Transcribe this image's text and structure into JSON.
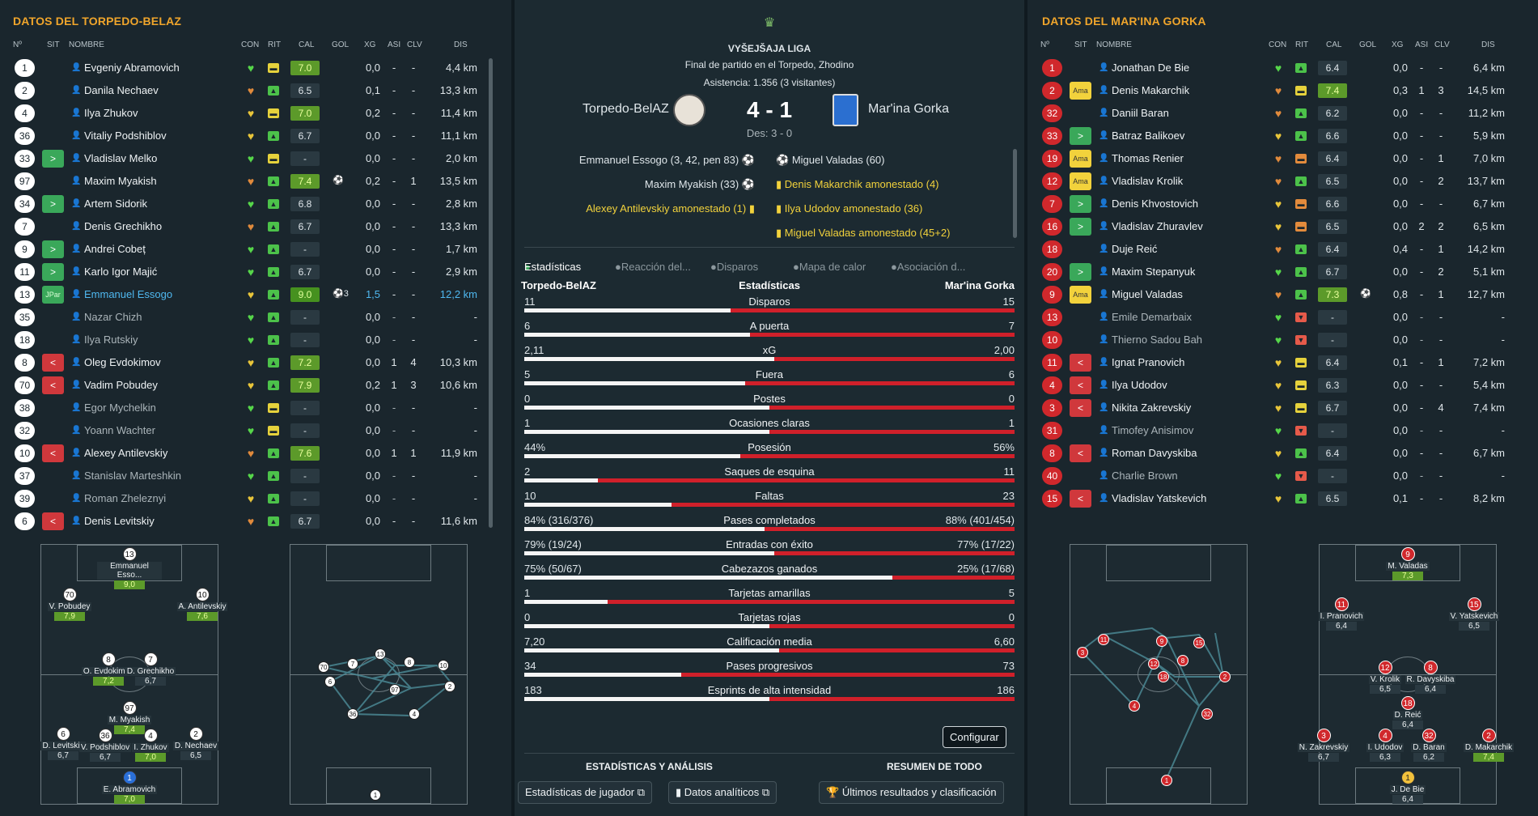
{
  "left": {
    "title": "DATOS DEL TORPEDO-BELAZ",
    "headers": {
      "no": "Nº",
      "sit": "SIT",
      "nombre": "NOMBRE",
      "con": "CON",
      "rit": "RIT",
      "cal": "CAL",
      "gol": "GOL",
      "xg": "XG",
      "asi": "ASI",
      "clv": "CLV",
      "dis": "DIS"
    },
    "players": [
      {
        "no": "1",
        "sit": "",
        "name": "Evgeniy Abramovich",
        "con": "green",
        "rit": "flat",
        "cal": "7.0",
        "calc": "g1",
        "gol": "",
        "xg": "0,0",
        "asi": "-",
        "clv": "-",
        "dis": "4,4 km"
      },
      {
        "no": "2",
        "sit": "",
        "name": "Danila Nechaev",
        "con": "orange",
        "rit": "up",
        "cal": "6.5",
        "calc": "",
        "gol": "",
        "xg": "0,1",
        "asi": "-",
        "clv": "-",
        "dis": "13,3 km"
      },
      {
        "no": "4",
        "sit": "",
        "name": "Ilya Zhukov",
        "con": "yellow",
        "rit": "flat",
        "cal": "7.0",
        "calc": "g1",
        "gol": "",
        "xg": "0,2",
        "asi": "-",
        "clv": "-",
        "dis": "11,4 km"
      },
      {
        "no": "36",
        "sit": "",
        "name": "Vitaliy Podshiblov",
        "con": "yellow",
        "rit": "up",
        "cal": "6.7",
        "calc": "",
        "gol": "",
        "xg": "0,0",
        "asi": "-",
        "clv": "-",
        "dis": "11,1 km"
      },
      {
        "no": "33",
        "sit": ">",
        "sitc": "in",
        "name": "Vladislav Melko",
        "con": "green",
        "rit": "flat",
        "cal": "-",
        "calc": "",
        "gol": "",
        "xg": "0,0",
        "asi": "-",
        "clv": "-",
        "dis": "2,0 km"
      },
      {
        "no": "97",
        "sit": "",
        "name": "Maxim Myakish",
        "con": "orange",
        "rit": "up",
        "cal": "7.4",
        "calc": "g1",
        "gol": "⚽",
        "xg": "0,2",
        "asi": "-",
        "clv": "1",
        "dis": "13,5 km"
      },
      {
        "no": "34",
        "sit": ">",
        "sitc": "in",
        "name": "Artem Sidorik",
        "con": "green",
        "rit": "up",
        "cal": "6.8",
        "calc": "",
        "gol": "",
        "xg": "0,0",
        "asi": "-",
        "clv": "-",
        "dis": "2,8 km"
      },
      {
        "no": "7",
        "sit": "",
        "name": "Denis Grechikho",
        "con": "orange",
        "rit": "up",
        "cal": "6.7",
        "calc": "",
        "gol": "",
        "xg": "0,0",
        "asi": "-",
        "clv": "-",
        "dis": "13,3 km"
      },
      {
        "no": "9",
        "sit": ">",
        "sitc": "in",
        "name": "Andrei Cobeț",
        "con": "green",
        "rit": "up",
        "cal": "-",
        "calc": "",
        "gol": "",
        "xg": "0,0",
        "asi": "-",
        "clv": "-",
        "dis": "1,7 km"
      },
      {
        "no": "11",
        "sit": ">",
        "sitc": "in",
        "name": "Karlo Igor Majić",
        "con": "green",
        "rit": "up",
        "cal": "6.7",
        "calc": "",
        "gol": "",
        "xg": "0,0",
        "asi": "-",
        "clv": "-",
        "dis": "2,9 km"
      },
      {
        "no": "13",
        "sit": "JPar",
        "sitc": "jpar",
        "name": "Emmanuel Essogo",
        "hl": true,
        "con": "yellow",
        "rit": "up",
        "cal": "9.0",
        "calc": "g2",
        "gol": "⚽3",
        "xg": "1,5",
        "asi": "-",
        "clv": "-",
        "dis": "12,2 km"
      },
      {
        "no": "35",
        "sit": "",
        "name": "Nazar Chizh",
        "dim": true,
        "con": "green",
        "rit": "up",
        "cal": "-",
        "calc": "",
        "gol": "",
        "xg": "0,0",
        "asi": "-",
        "clv": "-",
        "dis": "-"
      },
      {
        "no": "18",
        "sit": "",
        "name": "Ilya Rutskiy",
        "dim": true,
        "con": "green",
        "rit": "up",
        "cal": "-",
        "calc": "",
        "gol": "",
        "xg": "0,0",
        "asi": "-",
        "clv": "-",
        "dis": "-"
      },
      {
        "no": "8",
        "sit": "<",
        "sitc": "out",
        "name": "Oleg Evdokimov",
        "con": "yellow",
        "rit": "up",
        "cal": "7.2",
        "calc": "g1",
        "gol": "",
        "xg": "0,0",
        "asi": "1",
        "clv": "4",
        "dis": "10,3 km"
      },
      {
        "no": "70",
        "sit": "<",
        "sitc": "out",
        "name": "Vadim Pobudey",
        "con": "yellow",
        "rit": "up",
        "cal": "7.9",
        "calc": "g1",
        "gol": "",
        "xg": "0,2",
        "asi": "1",
        "clv": "3",
        "dis": "10,6 km"
      },
      {
        "no": "38",
        "sit": "",
        "name": "Egor Mychelkin",
        "dim": true,
        "con": "green",
        "rit": "flat",
        "cal": "-",
        "calc": "",
        "gol": "",
        "xg": "0,0",
        "asi": "-",
        "clv": "-",
        "dis": "-"
      },
      {
        "no": "32",
        "sit": "",
        "name": "Yoann Wachter",
        "dim": true,
        "con": "green",
        "rit": "flat",
        "cal": "-",
        "calc": "",
        "gol": "",
        "xg": "0,0",
        "asi": "-",
        "clv": "-",
        "dis": "-"
      },
      {
        "no": "10",
        "sit": "<",
        "sitc": "out",
        "name": "Alexey Antilevskiy",
        "con": "orange",
        "rit": "up",
        "cal": "7.6",
        "calc": "g1",
        "gol": "",
        "xg": "0,0",
        "asi": "1",
        "clv": "1",
        "dis": "11,9 km"
      },
      {
        "no": "37",
        "sit": "",
        "name": "Stanislav Marteshkin",
        "dim": true,
        "con": "green",
        "rit": "up",
        "cal": "-",
        "calc": "",
        "gol": "",
        "xg": "0,0",
        "asi": "-",
        "clv": "-",
        "dis": "-"
      },
      {
        "no": "39",
        "sit": "",
        "name": "Roman Zheleznyi",
        "dim": true,
        "con": "yellow",
        "rit": "up",
        "cal": "-",
        "calc": "",
        "gol": "",
        "xg": "0,0",
        "asi": "-",
        "clv": "-",
        "dis": "-"
      },
      {
        "no": "6",
        "sit": "<",
        "sitc": "out",
        "name": "Denis Levitskiy",
        "con": "orange",
        "rit": "up",
        "cal": "6.7",
        "calc": "",
        "gol": "",
        "xg": "0,0",
        "asi": "-",
        "clv": "-",
        "dis": "11,6 km"
      }
    ],
    "formation": [
      {
        "no": "13",
        "name": "Emmanuel Esso...",
        "rating": "9,0",
        "g": true
      },
      {
        "no": "70",
        "name": "V. Pobudey",
        "rating": "7,9",
        "g": true
      },
      {
        "no": "10",
        "name": "A. Antilevskiy",
        "rating": "7,6",
        "g": true
      },
      {
        "no": "8",
        "name": "O. Evdokimov",
        "rating": "7,2",
        "g": true
      },
      {
        "no": "7",
        "name": "D. Grechikho",
        "rating": "6,7"
      },
      {
        "no": "97",
        "name": "M. Myakish",
        "rating": "7,4",
        "g": true
      },
      {
        "no": "6",
        "name": "D. Levitskiy",
        "rating": "6,7"
      },
      {
        "no": "36",
        "name": "V. Podshiblov",
        "rating": "6,7"
      },
      {
        "no": "4",
        "name": "I. Zhukov",
        "rating": "7,0",
        "g": true
      },
      {
        "no": "2",
        "name": "D. Nechaev",
        "rating": "6,5"
      },
      {
        "no": "1",
        "name": "E. Abramovich",
        "rating": "7,0",
        "g": true
      }
    ],
    "network": [
      "70",
      "7",
      "13",
      "8",
      "10",
      "6",
      "97",
      "2",
      "36",
      "4",
      "1"
    ]
  },
  "right": {
    "title": "DATOS DEL MAR'INA GORKA",
    "headers": {
      "no": "Nº",
      "sit": "SIT",
      "nombre": "NOMBRE",
      "con": "CON",
      "rit": "RIT",
      "cal": "CAL",
      "gol": "GOL",
      "xg": "XG",
      "asi": "ASI",
      "clv": "CLV",
      "dis": "DIS"
    },
    "players": [
      {
        "no": "1",
        "sit": "",
        "name": "Jonathan De Bie",
        "con": "green",
        "rit": "up",
        "cal": "6.4",
        "calc": "",
        "gol": "",
        "xg": "0,0",
        "asi": "-",
        "clv": "-",
        "dis": "6,4 km"
      },
      {
        "no": "2",
        "sit": "Ama",
        "sitc": "ama",
        "name": "Denis Makarchik",
        "con": "orange",
        "rit": "flat",
        "cal": "7.4",
        "calc": "g1",
        "gol": "",
        "xg": "0,3",
        "asi": "1",
        "clv": "3",
        "dis": "14,5 km"
      },
      {
        "no": "32",
        "sit": "",
        "name": "Daniil Baran",
        "con": "orange",
        "rit": "up",
        "cal": "6.2",
        "calc": "",
        "gol": "",
        "xg": "0,0",
        "asi": "-",
        "clv": "-",
        "dis": "11,2 km"
      },
      {
        "no": "33",
        "sit": ">",
        "sitc": "in",
        "name": "Batraz Balikoev",
        "con": "yellow",
        "rit": "up",
        "cal": "6.6",
        "calc": "",
        "gol": "",
        "xg": "0,0",
        "asi": "-",
        "clv": "-",
        "dis": "5,9 km"
      },
      {
        "no": "19",
        "sit": "Ama",
        "sitc": "ama",
        "name": "Thomas Renier",
        "con": "orange",
        "rit": "flat2",
        "cal": "6.4",
        "calc": "",
        "gol": "",
        "xg": "0,0",
        "asi": "-",
        "clv": "1",
        "dis": "7,0 km"
      },
      {
        "no": "12",
        "sit": "Ama",
        "sitc": "ama",
        "name": "Vladislav Krolik",
        "con": "orange",
        "rit": "up",
        "cal": "6.5",
        "calc": "",
        "gol": "",
        "xg": "0,0",
        "asi": "-",
        "clv": "2",
        "dis": "13,7 km"
      },
      {
        "no": "7",
        "sit": ">",
        "sitc": "in",
        "name": "Denis Khvostovich",
        "con": "yellow",
        "rit": "flat2",
        "cal": "6.6",
        "calc": "",
        "gol": "",
        "xg": "0,0",
        "asi": "-",
        "clv": "-",
        "dis": "6,7 km"
      },
      {
        "no": "16",
        "sit": ">",
        "sitc": "in",
        "name": "Vladislav Zhuravlev",
        "con": "yellow",
        "rit": "flat2",
        "cal": "6.5",
        "calc": "",
        "gol": "",
        "xg": "0,0",
        "asi": "2",
        "clv": "2",
        "dis": "6,5 km"
      },
      {
        "no": "18",
        "sit": "",
        "name": "Duje Reić",
        "con": "orange",
        "rit": "up",
        "cal": "6.4",
        "calc": "",
        "gol": "",
        "xg": "0,4",
        "asi": "-",
        "clv": "1",
        "dis": "14,2 km"
      },
      {
        "no": "20",
        "sit": ">",
        "sitc": "in",
        "name": "Maxim Stepanyuk",
        "con": "green",
        "rit": "up",
        "cal": "6.7",
        "calc": "",
        "gol": "",
        "xg": "0,0",
        "asi": "-",
        "clv": "2",
        "dis": "5,1 km"
      },
      {
        "no": "9",
        "sit": "Ama",
        "sitc": "ama",
        "name": "Miguel Valadas",
        "con": "orange",
        "rit": "up",
        "cal": "7.3",
        "calc": "g1",
        "gol": "⚽",
        "xg": "0,8",
        "asi": "-",
        "clv": "1",
        "dis": "12,7 km"
      },
      {
        "no": "13",
        "sit": "",
        "name": "Emile Demarbaix",
        "dim": true,
        "con": "green",
        "rit": "down",
        "cal": "-",
        "calc": "",
        "gol": "",
        "xg": "0,0",
        "asi": "-",
        "clv": "-",
        "dis": "-"
      },
      {
        "no": "10",
        "sit": "",
        "name": "Thierno Sadou Bah",
        "dim": true,
        "con": "green",
        "rit": "down",
        "cal": "-",
        "calc": "",
        "gol": "",
        "xg": "0,0",
        "asi": "-",
        "clv": "-",
        "dis": "-"
      },
      {
        "no": "11",
        "sit": "<",
        "sitc": "out",
        "name": "Ignat Pranovich",
        "con": "yellow",
        "rit": "flat",
        "cal": "6.4",
        "calc": "",
        "gol": "",
        "xg": "0,1",
        "asi": "-",
        "clv": "1",
        "dis": "7,2 km"
      },
      {
        "no": "4",
        "sit": "<",
        "sitc": "out",
        "name": "Ilya Udodov",
        "con": "yellow",
        "rit": "flat",
        "cal": "6.3",
        "calc": "",
        "gol": "",
        "xg": "0,0",
        "asi": "-",
        "clv": "-",
        "dis": "5,4 km"
      },
      {
        "no": "3",
        "sit": "<",
        "sitc": "out",
        "name": "Nikita Zakrevskiy",
        "con": "yellow",
        "rit": "flat",
        "cal": "6.7",
        "calc": "",
        "gol": "",
        "xg": "0,0",
        "asi": "-",
        "clv": "4",
        "dis": "7,4 km"
      },
      {
        "no": "31",
        "sit": "",
        "name": "Timofey Anisimov",
        "dim": true,
        "con": "green",
        "rit": "down",
        "cal": "-",
        "calc": "",
        "gol": "",
        "xg": "0,0",
        "asi": "-",
        "clv": "-",
        "dis": "-"
      },
      {
        "no": "8",
        "sit": "<",
        "sitc": "out",
        "name": "Roman Davyskiba",
        "con": "yellow",
        "rit": "up",
        "cal": "6.4",
        "calc": "",
        "gol": "",
        "xg": "0,0",
        "asi": "-",
        "clv": "-",
        "dis": "6,7 km"
      },
      {
        "no": "40",
        "sit": "",
        "name": "Charlie Brown",
        "dim": true,
        "con": "green",
        "rit": "down",
        "cal": "-",
        "calc": "",
        "gol": "",
        "xg": "0,0",
        "asi": "-",
        "clv": "-",
        "dis": "-"
      },
      {
        "no": "15",
        "sit": "<",
        "sitc": "out",
        "name": "Vladislav Yatskevich",
        "con": "yellow",
        "rit": "up",
        "cal": "6.5",
        "calc": "",
        "gol": "",
        "xg": "0,1",
        "asi": "-",
        "clv": "-",
        "dis": "8,2 km"
      }
    ],
    "formation": [
      {
        "no": "9",
        "name": "M. Valadas",
        "rating": "7,3",
        "g": true
      },
      {
        "no": "11",
        "name": "I. Pranovich",
        "rating": "6,4"
      },
      {
        "no": "15",
        "name": "V. Yatskevich",
        "rating": "6,5"
      },
      {
        "no": "12",
        "name": "V. Krolik",
        "rating": "6,5"
      },
      {
        "no": "8",
        "name": "R. Davyskiba",
        "rating": "6,4"
      },
      {
        "no": "18",
        "name": "D. Reić",
        "rating": "6,4"
      },
      {
        "no": "3",
        "name": "N. Zakrevskiy",
        "rating": "6,7"
      },
      {
        "no": "4",
        "name": "I. Udodov",
        "rating": "6,3"
      },
      {
        "no": "32",
        "name": "D. Baran",
        "rating": "6,2"
      },
      {
        "no": "2",
        "name": "D. Makarchik",
        "rating": "7,4",
        "g": true
      },
      {
        "no": "1",
        "name": "J. De Bie",
        "rating": "6,4"
      }
    ],
    "network": [
      "11",
      "9",
      "15",
      "3",
      "12",
      "8",
      "18",
      "2",
      "4",
      "32",
      "1"
    ]
  },
  "center": {
    "league": "VYŠEJŠAJA LIGA",
    "venue": "Final de partido en el Torpedo, Zhodino",
    "attendance": "Asistencia: 1.356 (3 visitantes)",
    "home": "Torpedo-BelAZ",
    "away": "Mar'ina Gorka",
    "score": "4 - 1",
    "halftime": "Des: 3 - 0",
    "events_home": [
      "Emmanuel Essogo (3, 42, pen 83)",
      "Maxim Myakish (33)",
      "Alexey Antilevskiy amonestado (1)"
    ],
    "events_away": [
      "Miguel Valadas (60)",
      "Denis Makarchik amonestado (4)",
      "Ilya Udodov amonestado (36)",
      "Miguel Valadas amonestado (45+2)"
    ],
    "tabs": [
      "Estadísticas",
      "Reacción del...",
      "Disparos",
      "Mapa de calor",
      "Asociación d..."
    ],
    "stat_home_label": "Torpedo-BelAZ",
    "stat_title": "Estadísticas",
    "stat_away_label": "Mar'ina Gorka",
    "stats": [
      {
        "label": "Disparos",
        "h": "11",
        "a": "15",
        "hp": 42
      },
      {
        "label": "A puerta",
        "h": "6",
        "a": "7",
        "hp": 46
      },
      {
        "label": "xG",
        "h": "2,11",
        "a": "2,00",
        "hp": 51
      },
      {
        "label": "Fuera",
        "h": "5",
        "a": "6",
        "hp": 45
      },
      {
        "label": "Postes",
        "h": "0",
        "a": "0",
        "hp": 50
      },
      {
        "label": "Ocasiones claras",
        "h": "1",
        "a": "1",
        "hp": 50
      },
      {
        "label": "Posesión",
        "h": "44%",
        "a": "56%",
        "hp": 44
      },
      {
        "label": "Saques de esquina",
        "h": "2",
        "a": "11",
        "hp": 15
      },
      {
        "label": "Faltas",
        "h": "10",
        "a": "23",
        "hp": 30
      },
      {
        "label": "Pases completados",
        "h": "84% (316/376)",
        "a": "88% (401/454)",
        "hp": 49
      },
      {
        "label": "Entradas con éxito",
        "h": "79% (19/24)",
        "a": "77% (17/22)",
        "hp": 51
      },
      {
        "label": "Cabezazos ganados",
        "h": "75% (50/67)",
        "a": "25% (17/68)",
        "hp": 75
      },
      {
        "label": "Tarjetas amarillas",
        "h": "1",
        "a": "5",
        "hp": 17
      },
      {
        "label": "Tarjetas rojas",
        "h": "0",
        "a": "0",
        "hp": 50
      },
      {
        "label": "Calificación media",
        "h": "7,20",
        "a": "6,60",
        "hp": 52
      },
      {
        "label": "Pases progresivos",
        "h": "34",
        "a": "73",
        "hp": 32
      },
      {
        "label": "Esprints de alta intensidad",
        "h": "183",
        "a": "186",
        "hp": 50
      }
    ],
    "configurar": "Configurar",
    "section1": "ESTADÍSTICAS Y ANÁLISIS",
    "section2": "RESUMEN DE TODO",
    "btn1": "Estadísticas de jugador",
    "btn2": "Datos analíticos",
    "btn3": "Últimos resultados y clasificación"
  },
  "colors": {
    "accent": "#f0a52b",
    "good": "#5c9a2a",
    "bar_home": "#f5f5f5",
    "bar_away": "#d0202a"
  }
}
